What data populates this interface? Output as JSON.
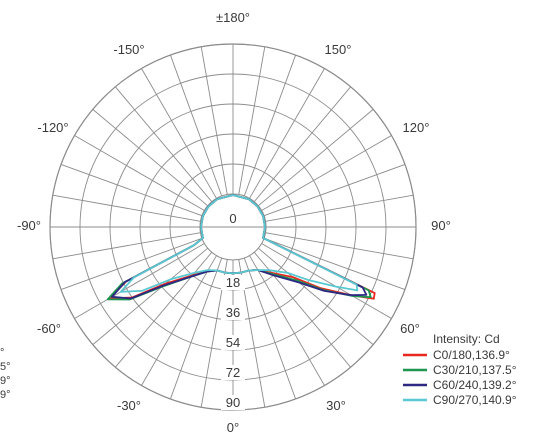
{
  "chart_data": {
    "type": "polar",
    "legend_title": "Intensity: Cd",
    "legend_position": "bottom-right",
    "angle_labels": [
      {
        "angle": 180,
        "label": "±180°"
      },
      {
        "angle": -150,
        "label": "-150°"
      },
      {
        "angle": 150,
        "label": "150°"
      },
      {
        "angle": -120,
        "label": "-120°"
      },
      {
        "angle": 120,
        "label": "120°"
      },
      {
        "angle": -90,
        "label": "-90°"
      },
      {
        "angle": 90,
        "label": "90°"
      },
      {
        "angle": -60,
        "label": "-60°"
      },
      {
        "angle": 60,
        "label": "60°"
      },
      {
        "angle": -30,
        "label": "-30°"
      },
      {
        "angle": 30,
        "label": "30°"
      },
      {
        "angle": 0,
        "label": "0°"
      }
    ],
    "radial_ticks": [
      0,
      18,
      36,
      54,
      72,
      90
    ],
    "radial_max": 90,
    "series": [
      {
        "name": "C0/180,136.9°",
        "color": "#e8281e",
        "right": [
          [
            65,
            74
          ],
          [
            63,
            75
          ],
          [
            60,
            62
          ],
          [
            55,
            44
          ],
          [
            50,
            27
          ],
          [
            40,
            16
          ],
          [
            30,
            10
          ],
          [
            20,
            8
          ],
          [
            10,
            8
          ],
          [
            0,
            8
          ]
        ],
        "left": [
          [
            65,
            6
          ],
          [
            63,
            52
          ],
          [
            60,
            66
          ],
          [
            55,
            54
          ],
          [
            50,
            33
          ],
          [
            40,
            18
          ],
          [
            30,
            11
          ],
          [
            20,
            8
          ],
          [
            10,
            8
          ],
          [
            0,
            8
          ]
        ]
      },
      {
        "name": "C30/210,137.5°",
        "color": "#1e9650",
        "right": [
          [
            65,
            70
          ],
          [
            63,
            73
          ],
          [
            60,
            63
          ],
          [
            55,
            46
          ],
          [
            50,
            30
          ],
          [
            40,
            17
          ],
          [
            30,
            10
          ],
          [
            20,
            8
          ],
          [
            10,
            8
          ],
          [
            0,
            8
          ]
        ],
        "left": [
          [
            65,
            6
          ],
          [
            63,
            55
          ],
          [
            60,
            67
          ],
          [
            55,
            56
          ],
          [
            50,
            36
          ],
          [
            40,
            19
          ],
          [
            30,
            11
          ],
          [
            20,
            8
          ],
          [
            10,
            8
          ],
          [
            0,
            8
          ]
        ]
      },
      {
        "name": "C60/240,139.2°",
        "color": "#2d2882",
        "right": [
          [
            65,
            66
          ],
          [
            63,
            70
          ],
          [
            60,
            62
          ],
          [
            55,
            47
          ],
          [
            50,
            32
          ],
          [
            40,
            18
          ],
          [
            30,
            10
          ],
          [
            20,
            8
          ],
          [
            10,
            8
          ],
          [
            0,
            8
          ]
        ],
        "left": [
          [
            65,
            6
          ],
          [
            63,
            53
          ],
          [
            60,
            64
          ],
          [
            55,
            55
          ],
          [
            50,
            35
          ],
          [
            40,
            19
          ],
          [
            30,
            11
          ],
          [
            20,
            8
          ],
          [
            10,
            8
          ],
          [
            0,
            8
          ]
        ]
      },
      {
        "name": "C90/270,140.9°",
        "color": "#5ac8d2",
        "right": [
          [
            65,
            62
          ],
          [
            63,
            64
          ],
          [
            60,
            52
          ],
          [
            55,
            36
          ],
          [
            50,
            23
          ],
          [
            40,
            14
          ],
          [
            30,
            10
          ],
          [
            20,
            8
          ],
          [
            10,
            8
          ],
          [
            0,
            8
          ]
        ],
        "left": [
          [
            65,
            6
          ],
          [
            63,
            47
          ],
          [
            60,
            58
          ],
          [
            55,
            47
          ],
          [
            50,
            29
          ],
          [
            40,
            16
          ],
          [
            30,
            10
          ],
          [
            20,
            8
          ],
          [
            10,
            8
          ],
          [
            0,
            8
          ]
        ]
      }
    ],
    "clipped_left_labels": [
      "°",
      "5°",
      "9°",
      "9°"
    ]
  }
}
